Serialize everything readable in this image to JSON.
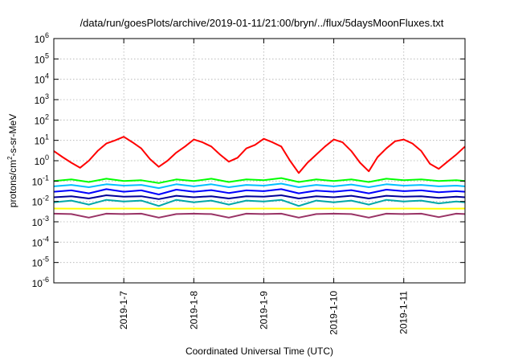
{
  "chart_data": {
    "type": "line",
    "title": "/data/run/goesPlots/archive/2019-01-11/21:00/bryn/../flux/5daysMoonFluxes.txt",
    "xlabel": "Coordinated Universal Time (UTC)",
    "ylabel": {
      "base": "protons/cm",
      "sup": "2",
      "rest": "-s-sr-MeV"
    },
    "yscale": "log",
    "ylim": [
      1e-06,
      1000000.0
    ],
    "xlim": [
      "2019-01-06 00:00",
      "2019-01-11 21:00"
    ],
    "grid": true,
    "legend": "none",
    "x_ticks": [
      {
        "date": "2019-01-07",
        "label": "2019-1-7"
      },
      {
        "date": "2019-01-08",
        "label": "2019-1-8"
      },
      {
        "date": "2019-01-09",
        "label": "2019-1-9"
      },
      {
        "date": "2019-01-10",
        "label": "2019-1-10"
      },
      {
        "date": "2019-01-11",
        "label": "2019-1-11"
      }
    ],
    "y_ticks": [
      {
        "exp": "6",
        "value": 1000000.0
      },
      {
        "exp": "5",
        "value": 100000.0
      },
      {
        "exp": "4",
        "value": 10000.0
      },
      {
        "exp": "3",
        "value": 1000.0
      },
      {
        "exp": "2",
        "value": 100.0
      },
      {
        "exp": "1",
        "value": 10.0
      },
      {
        "exp": "0",
        "value": 1
      },
      {
        "exp": "-1",
        "value": 0.1
      },
      {
        "exp": "-2",
        "value": 0.01
      },
      {
        "exp": "-3",
        "value": 0.001
      },
      {
        "exp": "-4",
        "value": 0.0001
      },
      {
        "exp": "-5",
        "value": 1e-05
      },
      {
        "exp": "-6",
        "value": 1e-06
      }
    ],
    "y_tick_base": "10",
    "series": [
      {
        "color": "#ff0000",
        "x": [
          "2019-01-06 00:00",
          "2019-01-06 03:00",
          "2019-01-06 06:00",
          "2019-01-06 09:00",
          "2019-01-06 12:00",
          "2019-01-06 15:00",
          "2019-01-06 18:00",
          "2019-01-06 21:00",
          "2019-01-07 00:00",
          "2019-01-07 03:00",
          "2019-01-07 06:00",
          "2019-01-07 09:00",
          "2019-01-07 12:00",
          "2019-01-07 15:00",
          "2019-01-07 18:00",
          "2019-01-07 21:00",
          "2019-01-08 00:00",
          "2019-01-08 03:00",
          "2019-01-08 06:00",
          "2019-01-08 09:00",
          "2019-01-08 12:00",
          "2019-01-08 15:00",
          "2019-01-08 18:00",
          "2019-01-08 21:00",
          "2019-01-09 00:00",
          "2019-01-09 03:00",
          "2019-01-09 06:00",
          "2019-01-09 09:00",
          "2019-01-09 12:00",
          "2019-01-09 15:00",
          "2019-01-09 18:00",
          "2019-01-09 21:00",
          "2019-01-10 00:00",
          "2019-01-10 03:00",
          "2019-01-10 06:00",
          "2019-01-10 09:00",
          "2019-01-10 12:00",
          "2019-01-10 15:00",
          "2019-01-10 18:00",
          "2019-01-10 21:00",
          "2019-01-11 00:00",
          "2019-01-11 03:00",
          "2019-01-11 06:00",
          "2019-01-11 09:00",
          "2019-01-11 12:00",
          "2019-01-11 15:00",
          "2019-01-11 18:00",
          "2019-01-11 21:00"
        ],
        "values": [
          3,
          1.5,
          0.8,
          0.45,
          1,
          3,
          7,
          10,
          15,
          8,
          4,
          1.2,
          0.5,
          1,
          2.5,
          5,
          11,
          8,
          5,
          2,
          0.9,
          1.4,
          4,
          6,
          12,
          8,
          5,
          1,
          0.25,
          0.8,
          2,
          5,
          11,
          8,
          3,
          0.8,
          0.3,
          1.5,
          4,
          9,
          11,
          7,
          3,
          0.7,
          0.4,
          0.9,
          2,
          5
        ]
      },
      {
        "color": "#00ff00",
        "x": [
          "2019-01-06 00:00",
          "2019-01-06 06:00",
          "2019-01-06 12:00",
          "2019-01-06 18:00",
          "2019-01-07 00:00",
          "2019-01-07 06:00",
          "2019-01-07 12:00",
          "2019-01-07 18:00",
          "2019-01-08 00:00",
          "2019-01-08 06:00",
          "2019-01-08 12:00",
          "2019-01-08 18:00",
          "2019-01-09 00:00",
          "2019-01-09 06:00",
          "2019-01-09 12:00",
          "2019-01-09 18:00",
          "2019-01-10 00:00",
          "2019-01-10 06:00",
          "2019-01-10 12:00",
          "2019-01-10 18:00",
          "2019-01-11 00:00",
          "2019-01-11 06:00",
          "2019-01-11 12:00",
          "2019-01-11 18:00",
          "2019-01-11 21:00"
        ],
        "values": [
          0.1,
          0.12,
          0.09,
          0.13,
          0.1,
          0.11,
          0.08,
          0.12,
          0.1,
          0.13,
          0.09,
          0.12,
          0.11,
          0.14,
          0.09,
          0.12,
          0.1,
          0.12,
          0.09,
          0.13,
          0.11,
          0.12,
          0.1,
          0.11,
          0.1
        ]
      },
      {
        "color": "#00bfff",
        "x": [
          "2019-01-06 00:00",
          "2019-01-06 06:00",
          "2019-01-06 12:00",
          "2019-01-06 18:00",
          "2019-01-07 00:00",
          "2019-01-07 06:00",
          "2019-01-07 12:00",
          "2019-01-07 18:00",
          "2019-01-08 00:00",
          "2019-01-08 06:00",
          "2019-01-08 12:00",
          "2019-01-08 18:00",
          "2019-01-09 00:00",
          "2019-01-09 06:00",
          "2019-01-09 12:00",
          "2019-01-09 18:00",
          "2019-01-10 00:00",
          "2019-01-10 06:00",
          "2019-01-10 12:00",
          "2019-01-10 18:00",
          "2019-01-11 00:00",
          "2019-01-11 06:00",
          "2019-01-11 12:00",
          "2019-01-11 18:00",
          "2019-01-11 21:00"
        ],
        "values": [
          0.055,
          0.065,
          0.05,
          0.07,
          0.06,
          0.065,
          0.045,
          0.07,
          0.055,
          0.07,
          0.05,
          0.065,
          0.06,
          0.075,
          0.05,
          0.065,
          0.055,
          0.068,
          0.05,
          0.07,
          0.06,
          0.065,
          0.055,
          0.06,
          0.055
        ]
      },
      {
        "color": "#0000ff",
        "x": [
          "2019-01-06 00:00",
          "2019-01-06 06:00",
          "2019-01-06 12:00",
          "2019-01-06 18:00",
          "2019-01-07 00:00",
          "2019-01-07 06:00",
          "2019-01-07 12:00",
          "2019-01-07 18:00",
          "2019-01-08 00:00",
          "2019-01-08 06:00",
          "2019-01-08 12:00",
          "2019-01-08 18:00",
          "2019-01-09 00:00",
          "2019-01-09 06:00",
          "2019-01-09 12:00",
          "2019-01-09 18:00",
          "2019-01-10 00:00",
          "2019-01-10 06:00",
          "2019-01-10 12:00",
          "2019-01-10 18:00",
          "2019-01-11 00:00",
          "2019-01-11 06:00",
          "2019-01-11 12:00",
          "2019-01-11 18:00",
          "2019-01-11 21:00"
        ],
        "values": [
          0.03,
          0.035,
          0.025,
          0.04,
          0.03,
          0.035,
          0.022,
          0.038,
          0.03,
          0.036,
          0.026,
          0.035,
          0.032,
          0.04,
          0.025,
          0.034,
          0.03,
          0.036,
          0.025,
          0.038,
          0.032,
          0.035,
          0.028,
          0.032,
          0.03
        ]
      },
      {
        "color": "#000099",
        "x": [
          "2019-01-06 00:00",
          "2019-01-06 06:00",
          "2019-01-06 12:00",
          "2019-01-06 18:00",
          "2019-01-07 00:00",
          "2019-01-07 06:00",
          "2019-01-07 12:00",
          "2019-01-07 18:00",
          "2019-01-08 00:00",
          "2019-01-08 06:00",
          "2019-01-08 12:00",
          "2019-01-08 18:00",
          "2019-01-09 00:00",
          "2019-01-09 06:00",
          "2019-01-09 12:00",
          "2019-01-09 18:00",
          "2019-01-10 00:00",
          "2019-01-10 06:00",
          "2019-01-10 12:00",
          "2019-01-10 18:00",
          "2019-01-11 00:00",
          "2019-01-11 06:00",
          "2019-01-11 12:00",
          "2019-01-11 18:00",
          "2019-01-11 21:00"
        ],
        "values": [
          0.016,
          0.018,
          0.014,
          0.02,
          0.017,
          0.018,
          0.013,
          0.019,
          0.016,
          0.018,
          0.014,
          0.018,
          0.017,
          0.02,
          0.014,
          0.018,
          0.016,
          0.019,
          0.014,
          0.019,
          0.017,
          0.018,
          0.015,
          0.017,
          0.016
        ]
      },
      {
        "color": "#00a8a8",
        "x": [
          "2019-01-06 00:00",
          "2019-01-06 06:00",
          "2019-01-06 12:00",
          "2019-01-06 18:00",
          "2019-01-07 00:00",
          "2019-01-07 06:00",
          "2019-01-07 12:00",
          "2019-01-07 18:00",
          "2019-01-08 00:00",
          "2019-01-08 06:00",
          "2019-01-08 12:00",
          "2019-01-08 18:00",
          "2019-01-09 00:00",
          "2019-01-09 06:00",
          "2019-01-09 12:00",
          "2019-01-09 18:00",
          "2019-01-10 00:00",
          "2019-01-10 06:00",
          "2019-01-10 12:00",
          "2019-01-10 18:00",
          "2019-01-11 00:00",
          "2019-01-11 06:00",
          "2019-01-11 12:00",
          "2019-01-11 18:00",
          "2019-01-11 21:00"
        ],
        "values": [
          0.009,
          0.011,
          0.007,
          0.012,
          0.01,
          0.011,
          0.006,
          0.012,
          0.009,
          0.011,
          0.007,
          0.011,
          0.01,
          0.012,
          0.006,
          0.011,
          0.009,
          0.011,
          0.007,
          0.012,
          0.01,
          0.011,
          0.008,
          0.01,
          0.009
        ]
      },
      {
        "color": "#ffff00",
        "x": [
          "2019-01-06 00:00",
          "2019-01-06 12:00",
          "2019-01-07 00:00",
          "2019-01-07 12:00",
          "2019-01-08 00:00",
          "2019-01-08 12:00",
          "2019-01-09 00:00",
          "2019-01-09 12:00",
          "2019-01-10 00:00",
          "2019-01-10 12:00",
          "2019-01-11 00:00",
          "2019-01-11 12:00",
          "2019-01-11 21:00"
        ],
        "values": [
          0.0045,
          0.0044,
          0.0045,
          0.0044,
          0.0045,
          0.0044,
          0.0045,
          0.0044,
          0.0045,
          0.0044,
          0.0045,
          0.0044,
          0.0045
        ]
      },
      {
        "color": "#993366",
        "x": [
          "2019-01-06 00:00",
          "2019-01-06 06:00",
          "2019-01-06 12:00",
          "2019-01-06 18:00",
          "2019-01-07 00:00",
          "2019-01-07 06:00",
          "2019-01-07 12:00",
          "2019-01-07 18:00",
          "2019-01-08 00:00",
          "2019-01-08 06:00",
          "2019-01-08 12:00",
          "2019-01-08 18:00",
          "2019-01-09 00:00",
          "2019-01-09 06:00",
          "2019-01-09 12:00",
          "2019-01-09 18:00",
          "2019-01-10 00:00",
          "2019-01-10 06:00",
          "2019-01-10 12:00",
          "2019-01-10 18:00",
          "2019-01-11 00:00",
          "2019-01-11 06:00",
          "2019-01-11 12:00",
          "2019-01-11 18:00",
          "2019-01-11 21:00"
        ],
        "values": [
          0.0025,
          0.0024,
          0.0016,
          0.0025,
          0.0024,
          0.0025,
          0.0016,
          0.0024,
          0.0025,
          0.0024,
          0.0016,
          0.0025,
          0.0024,
          0.0025,
          0.0016,
          0.0024,
          0.0025,
          0.0024,
          0.0016,
          0.0025,
          0.0024,
          0.0025,
          0.0017,
          0.0025,
          0.0024
        ]
      }
    ]
  }
}
